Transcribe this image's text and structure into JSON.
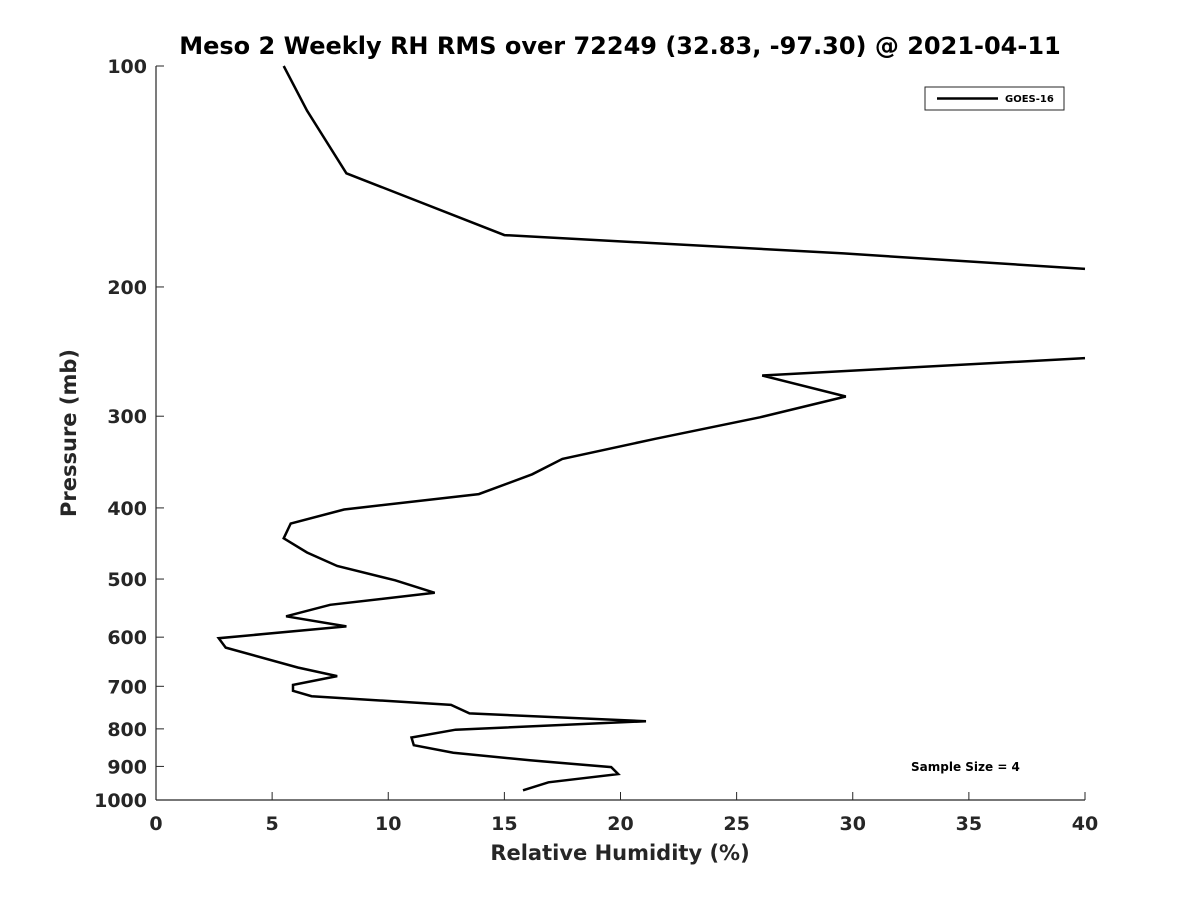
{
  "chart_data": {
    "type": "line",
    "title": "Meso 2 Weekly RH RMS over 72249 (32.83, -97.30) @ 2021-04-11",
    "xlabel": "Relative Humidity (%)",
    "ylabel": "Pressure (mb)",
    "xlim": [
      0,
      40
    ],
    "ylim": [
      100,
      1000
    ],
    "yscale": "log",
    "y_reversed": true,
    "xticks": [
      0,
      5,
      10,
      15,
      20,
      25,
      30,
      35,
      40
    ],
    "yticks": [
      100,
      200,
      300,
      400,
      500,
      600,
      700,
      800,
      900,
      1000
    ],
    "grid": false,
    "legend_position": "top-right",
    "annotation": "Sample Size = 4",
    "series": [
      {
        "name": "GOES-16",
        "color": "#000000",
        "segments": [
          [
            [
              5.5,
              100
            ],
            [
              6.5,
              115
            ],
            [
              8.2,
              140
            ],
            [
              15.0,
              170
            ],
            [
              29.6,
              180
            ],
            [
              40.0,
              189
            ]
          ],
          [
            [
              40.0,
              250
            ],
            [
              26.1,
              264
            ],
            [
              29.7,
              282
            ],
            [
              26.0,
              301
            ],
            [
              21.5,
              322
            ],
            [
              17.5,
              343
            ],
            [
              16.2,
              360
            ],
            [
              13.9,
              383
            ],
            [
              8.1,
              402
            ],
            [
              5.8,
              420
            ],
            [
              5.5,
              440
            ],
            [
              6.5,
              460
            ],
            [
              7.8,
              480
            ],
            [
              10.3,
              502
            ],
            [
              12.0,
              522
            ],
            [
              7.5,
              542
            ],
            [
              5.6,
              562
            ],
            [
              8.2,
              580
            ],
            [
              2.7,
              602
            ],
            [
              3.0,
              620
            ],
            [
              6.1,
              660
            ],
            [
              7.8,
              678
            ],
            [
              5.9,
              697
            ],
            [
              5.9,
              710
            ],
            [
              6.7,
              722
            ],
            [
              12.7,
              742
            ],
            [
              13.5,
              762
            ],
            [
              21.1,
              781
            ],
            [
              12.9,
              802
            ],
            [
              11.0,
              822
            ],
            [
              11.1,
              842
            ],
            [
              12.8,
              862
            ],
            [
              16.1,
              883
            ],
            [
              19.6,
              902
            ],
            [
              19.9,
              922
            ],
            [
              16.9,
              946
            ],
            [
              15.8,
              970
            ]
          ]
        ]
      }
    ]
  }
}
